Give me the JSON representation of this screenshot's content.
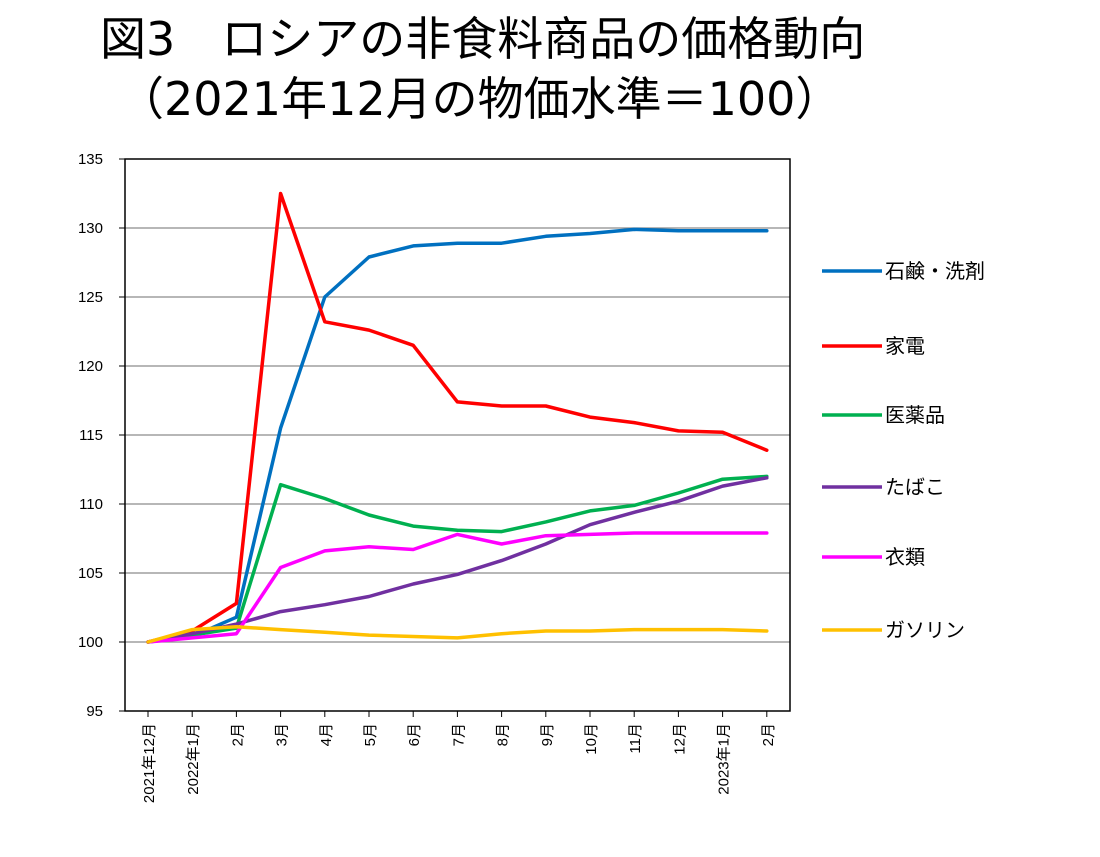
{
  "title": {
    "line1": "図3　ロシアの非食料商品の価格動向",
    "line2": "（2021年12月の物価水準＝100）"
  },
  "chart_data": {
    "type": "line",
    "categories": [
      "2021年12月",
      "2022年1月",
      "2月",
      "3月",
      "4月",
      "5月",
      "6月",
      "7月",
      "8月",
      "9月",
      "10月",
      "11月",
      "12月",
      "2023年1月",
      "2月"
    ],
    "ylim": [
      95,
      135
    ],
    "yticks": [
      95,
      100,
      105,
      110,
      115,
      120,
      125,
      130,
      135
    ],
    "grid": "horizontal",
    "legend_position": "right",
    "series": [
      {
        "name": "石鹸・洗剤",
        "color": "#0070C0",
        "values": [
          100,
          100.4,
          101.8,
          115.5,
          125.0,
          127.9,
          128.7,
          128.9,
          128.9,
          129.4,
          129.6,
          129.9,
          129.8,
          129.8,
          129.8
        ]
      },
      {
        "name": "家電",
        "color": "#FF0000",
        "values": [
          100,
          100.8,
          102.8,
          132.5,
          123.2,
          122.6,
          121.5,
          117.4,
          117.1,
          117.1,
          116.3,
          115.9,
          115.3,
          115.2,
          113.9
        ]
      },
      {
        "name": "医薬品",
        "color": "#00B050",
        "values": [
          100,
          100.5,
          101.0,
          111.4,
          110.4,
          109.2,
          108.4,
          108.1,
          108.0,
          108.7,
          109.5,
          109.9,
          110.8,
          111.8,
          112.0
        ]
      },
      {
        "name": "たばこ",
        "color": "#7030A0",
        "values": [
          100,
          100.6,
          101.3,
          102.2,
          102.7,
          103.3,
          104.2,
          104.9,
          105.9,
          107.1,
          108.5,
          109.4,
          110.2,
          111.3,
          111.9
        ]
      },
      {
        "name": "衣類",
        "color": "#FF00FF",
        "values": [
          100,
          100.3,
          100.6,
          105.4,
          106.6,
          106.9,
          106.7,
          107.8,
          107.1,
          107.7,
          107.8,
          107.9,
          107.9,
          107.9,
          107.9
        ]
      },
      {
        "name": "ガソリン",
        "color": "#FFC000",
        "values": [
          100,
          100.9,
          101.1,
          100.9,
          100.7,
          100.5,
          100.4,
          100.3,
          100.6,
          100.8,
          100.8,
          100.9,
          100.9,
          100.9,
          100.8
        ]
      }
    ]
  }
}
